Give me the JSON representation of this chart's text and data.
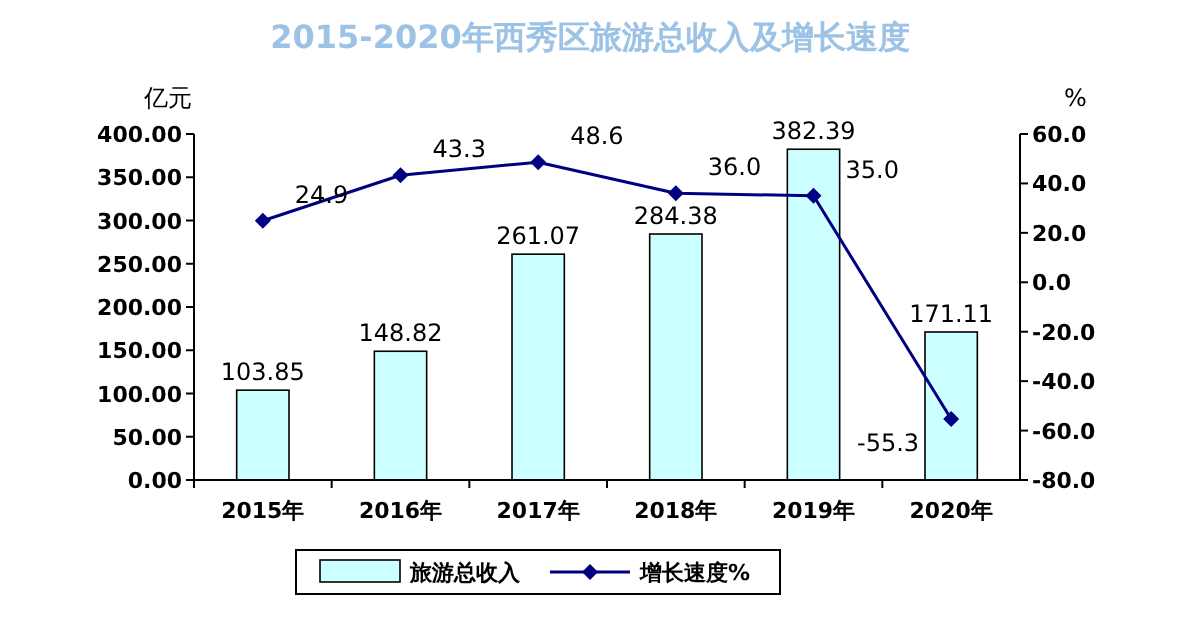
{
  "chart_data": {
    "type": "bar",
    "title": "2015-2020年西秀区旅游总收入及增长速度",
    "ylabel": "亿元",
    "y2label": "%",
    "categories": [
      "2015年",
      "2016年",
      "2017年",
      "2018年",
      "2019年",
      "2020年"
    ],
    "series": [
      {
        "name": "旅游总收入",
        "color": "#ccffff",
        "values": [
          103.85,
          148.82,
          261.07,
          284.38,
          382.39,
          171.11
        ]
      },
      {
        "name": "增长速度%",
        "type": "line",
        "axis": "y2",
        "color": "#000080",
        "marker": "diamond",
        "values": [
          24.9,
          43.3,
          48.6,
          36.0,
          35.0,
          -55.3
        ],
        "value_labels": [
          "24.9",
          "43.3",
          "48.6",
          "36.0",
          "35.0",
          "-55.3"
        ]
      }
    ],
    "ylim": [
      0,
      400
    ],
    "yticks": [
      {
        "value": 0,
        "label": "0.00"
      },
      {
        "value": 50,
        "label": "50.00"
      },
      {
        "value": 100,
        "label": "100.00"
      },
      {
        "value": 150,
        "label": "150.00"
      },
      {
        "value": 200,
        "label": "200.00"
      },
      {
        "value": 250,
        "label": "250.00"
      },
      {
        "value": 300,
        "label": "300.00"
      },
      {
        "value": 350,
        "label": "350.00"
      },
      {
        "value": 400,
        "label": "400.00"
      }
    ],
    "y2lim": [
      -80,
      60
    ],
    "y2ticks": [
      {
        "value": -80,
        "label": "-80.0"
      },
      {
        "value": -60,
        "label": "-60.0"
      },
      {
        "value": -40,
        "label": "-40.0"
      },
      {
        "value": -20,
        "label": "-20.0"
      },
      {
        "value": 0,
        "label": "0.0"
      },
      {
        "value": 20,
        "label": "20.0"
      },
      {
        "value": 40,
        "label": "40.0"
      },
      {
        "value": 60,
        "label": "60.0"
      }
    ],
    "data_labels": true,
    "legend": "bottom",
    "grid": false
  }
}
